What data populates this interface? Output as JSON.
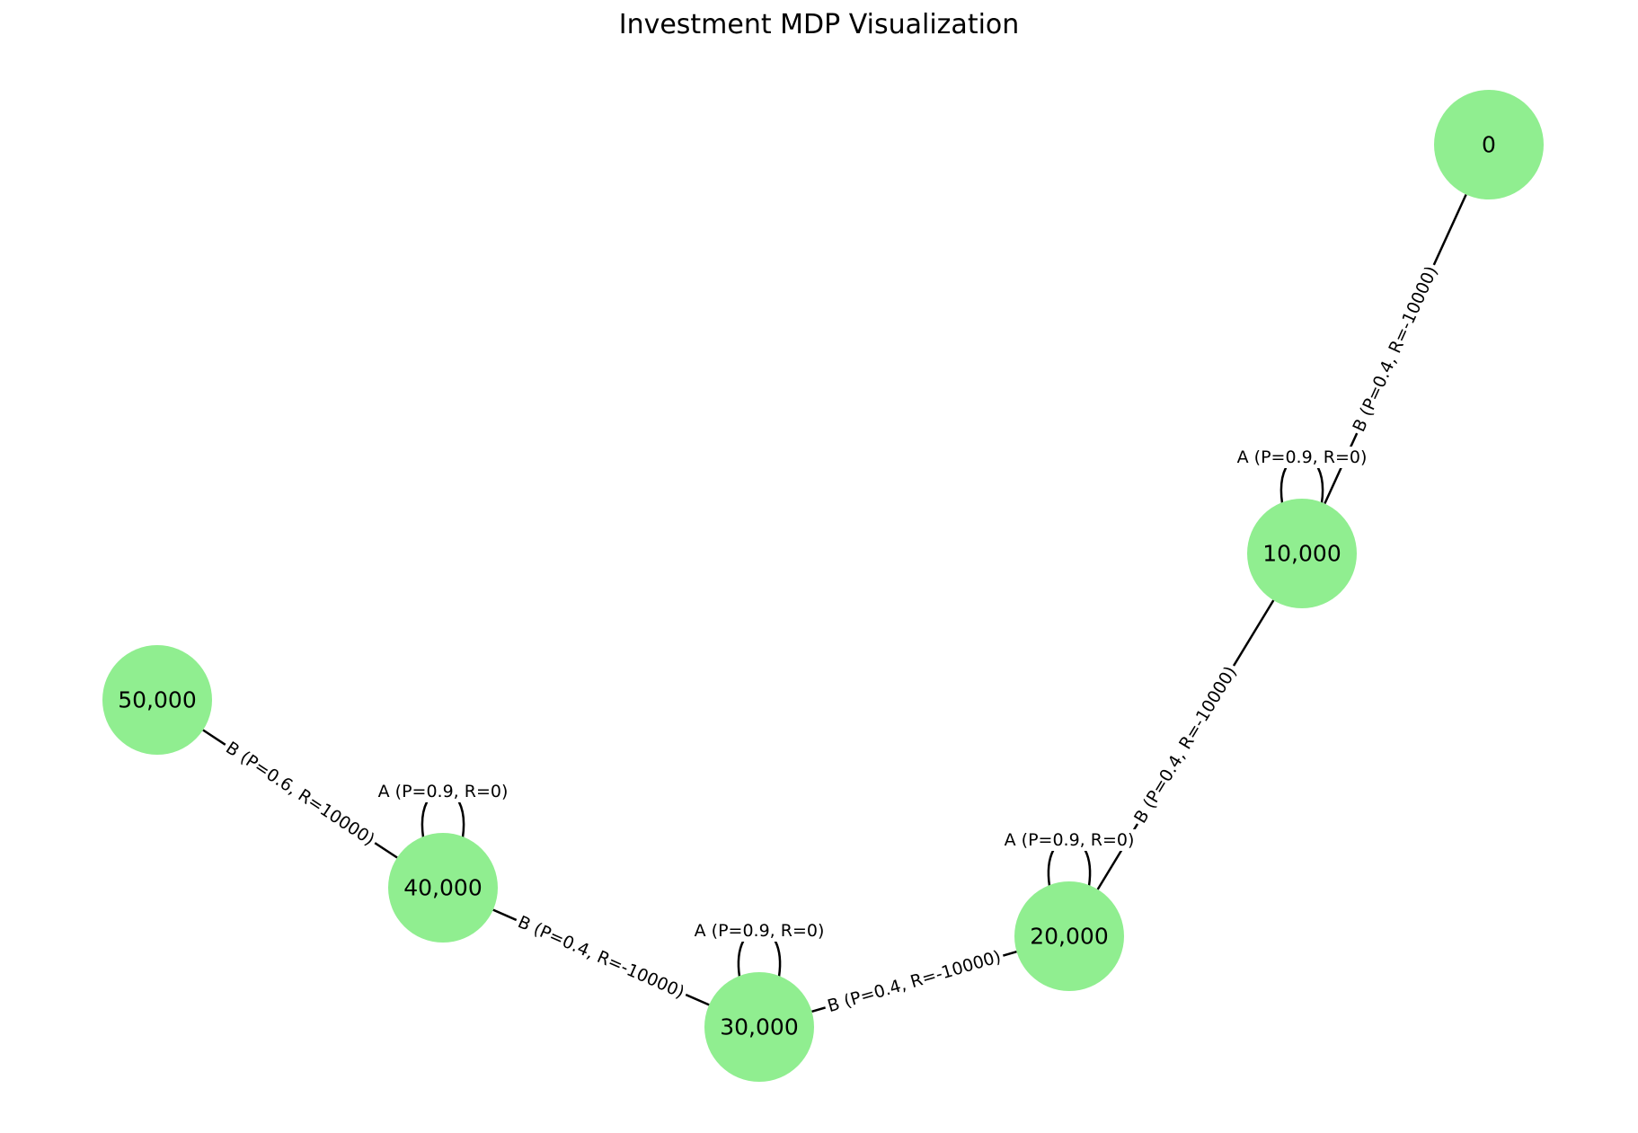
{
  "title": "Investment MDP Visualization",
  "colors": {
    "node_fill": "#90ee90",
    "edge": "#000000",
    "text": "#000000",
    "background": "#ffffff"
  },
  "nodes": [
    {
      "id": "n0",
      "label": "0"
    },
    {
      "id": "n10000",
      "label": "10,000"
    },
    {
      "id": "n20000",
      "label": "20,000"
    },
    {
      "id": "n30000",
      "label": "30,000"
    },
    {
      "id": "n40000",
      "label": "40,000"
    },
    {
      "id": "n50000",
      "label": "50,000"
    }
  ],
  "transitions": [
    {
      "from": "n0",
      "to": "n10000",
      "label": "B (P=0.4, R=-10000)"
    },
    {
      "from": "n10000",
      "to": "n20000",
      "label": "B (P=0.4, R=-10000)"
    },
    {
      "from": "n20000",
      "to": "n30000",
      "label": "B (P=0.4, R=-10000)"
    },
    {
      "from": "n30000",
      "to": "n40000",
      "label": "B (P=0.4, R=-10000)"
    },
    {
      "from": "n40000",
      "to": "n50000",
      "label": "B (P=0.6, R=10000)"
    },
    {
      "from": "n10000",
      "to": "n10000",
      "label": "A (P=0.9, R=0)"
    },
    {
      "from": "n20000",
      "to": "n20000",
      "label": "A (P=0.9, R=0)"
    },
    {
      "from": "n30000",
      "to": "n30000",
      "label": "A (P=0.9, R=0)"
    },
    {
      "from": "n40000",
      "to": "n40000",
      "label": "A (P=0.9, R=0)"
    }
  ]
}
